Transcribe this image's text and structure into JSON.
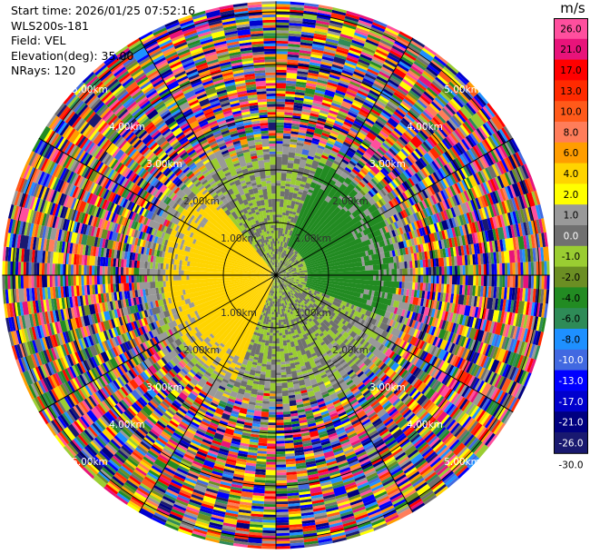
{
  "info": {
    "start_time": "Start time: 2026/01/25 07:52:16",
    "instrument": "WLS200s-181",
    "field": "Field: VEL",
    "elevation": "Elevation(deg): 35.00",
    "nrays": "NRays: 120"
  },
  "colorbar": {
    "unit": "m/s",
    "bins": [
      {
        "label": "26.0",
        "color": "#ff4f9e"
      },
      {
        "label": "21.0",
        "color": "#e8137a"
      },
      {
        "label": "17.0",
        "color": "#ff0000"
      },
      {
        "label": "13.0",
        "color": "#ff2a00"
      },
      {
        "label": "10.0",
        "color": "#ff5a1a"
      },
      {
        "label": "8.0",
        "color": "#ff7d5a"
      },
      {
        "label": "6.0",
        "color": "#ff9d00"
      },
      {
        "label": "4.0",
        "color": "#ffd400"
      },
      {
        "label": "2.0",
        "color": "#ffff00"
      },
      {
        "label": "1.0",
        "color": "#999999"
      },
      {
        "label": "0.0",
        "color": "#707070"
      },
      {
        "label": "-1.0",
        "color": "#9acd32"
      },
      {
        "label": "-2.0",
        "color": "#6b8e23"
      },
      {
        "label": "-4.0",
        "color": "#228b22"
      },
      {
        "label": "-6.0",
        "color": "#2e8b57"
      },
      {
        "label": "-8.0",
        "color": "#1e90ff"
      },
      {
        "label": "-10.0",
        "color": "#4169e1"
      },
      {
        "label": "-13.0",
        "color": "#0000ff"
      },
      {
        "label": "-17.0",
        "color": "#0000cd"
      },
      {
        "label": "-21.0",
        "color": "#000080"
      },
      {
        "label": "-26.0",
        "color": "#191970"
      },
      {
        "label": "-30.0",
        "color": ""
      }
    ]
  },
  "chart_data": {
    "type": "heatmap",
    "subtype": "ppi-polar",
    "field": "VEL",
    "unit": "m/s",
    "nrays": 120,
    "elevation_deg": 35.0,
    "range_rings_km": [
      1,
      2,
      3,
      4,
      5
    ],
    "range_labels": [
      "1.00km",
      "2.00km",
      "3.00km",
      "4.00km",
      "5.00km"
    ],
    "max_range_km": 5.2,
    "grid": true,
    "spokes_deg": [
      0,
      30,
      60,
      90,
      120,
      150,
      180,
      210,
      240,
      270,
      300,
      330
    ],
    "velocity_regions": [
      {
        "description": "positive 2.0 to 4.0 m/s",
        "sector_deg": [
          200,
          320
        ],
        "range_km": [
          0.1,
          2.1
        ],
        "value": 3.0
      },
      {
        "description": "negative -4 to -6 m/s",
        "sector_deg": [
          20,
          110
        ],
        "range_km": [
          0.6,
          2.3
        ],
        "value": -5.0
      },
      {
        "description": "near zero / -1 m/s",
        "sector_deg": [
          0,
          360
        ],
        "range_km": [
          0.0,
          2.5
        ],
        "value": -1.0
      }
    ],
    "noise_beyond_km": 2.5
  }
}
